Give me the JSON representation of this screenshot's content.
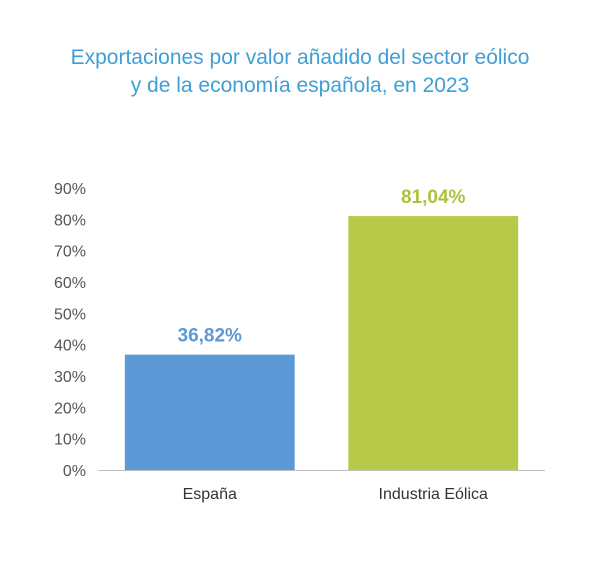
{
  "chart_data": {
    "type": "bar",
    "title_lines": [
      "Exportaciones por valor añadido del sector eólico",
      "y de la economía española, en 2023"
    ],
    "categories": [
      "España",
      "Industria Eólica"
    ],
    "values": [
      36.82,
      81.04
    ],
    "data_labels": [
      "36,82%",
      "81,04%"
    ],
    "colors": [
      "#5b9ad7",
      "#b8c94a"
    ],
    "label_colors": [
      "#5b9ad7",
      "#a9c23f"
    ],
    "ylim": [
      0,
      90
    ],
    "yticks": [
      0,
      10,
      20,
      30,
      40,
      50,
      60,
      70,
      80,
      90
    ],
    "ytick_labels": [
      "0%",
      "10%",
      "20%",
      "30%",
      "40%",
      "50%",
      "60%",
      "70%",
      "80%",
      "90%"
    ],
    "xlabel": "",
    "ylabel": "",
    "grid": false,
    "legend": "none"
  }
}
